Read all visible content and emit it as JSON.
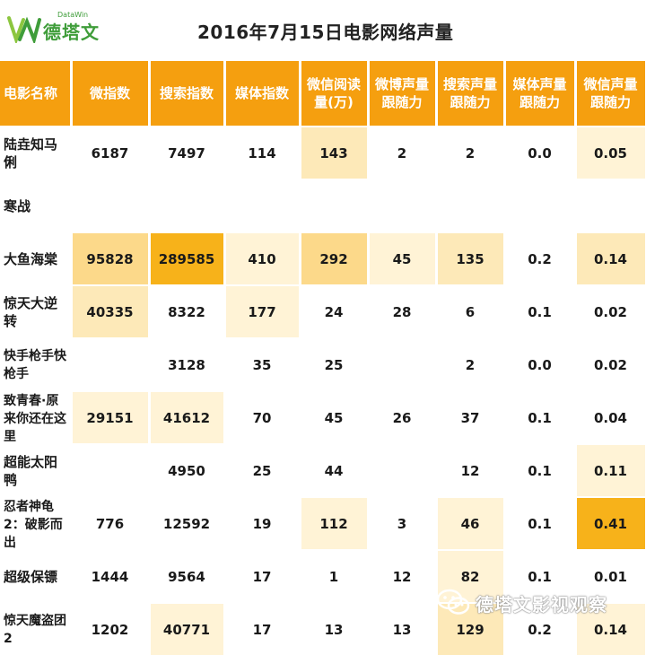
{
  "header": {
    "logo_text": "德塔文",
    "logo_sub": "DataWin",
    "title": "2016年7月15日电影网络声量"
  },
  "colors": {
    "header_bg": "#f59f0f",
    "heat_1": "#fff3d6",
    "heat_2": "#fde9b8",
    "heat_3": "#fcd98a",
    "heat_4": "#fbc64d",
    "heat_5": "#f7b21a",
    "logo_green": "#3f9d3a"
  },
  "table": {
    "columns": [
      "电影名称",
      "微指数",
      "搜索指数",
      "媒体指数",
      "微信阅读量(万)",
      "微博声量跟随力",
      "搜索声量跟随力",
      "媒体声量跟随力",
      "微信声量跟随力"
    ],
    "rows": [
      {
        "name": "陆垚知马俐",
        "cells": [
          "6187",
          "7497",
          "114",
          "143",
          "2",
          "2",
          "0.0",
          "0.05"
        ],
        "heat": [
          0,
          0,
          0,
          2,
          0,
          0,
          0,
          1
        ]
      },
      {
        "name": "寒战",
        "cells": [
          "",
          "",
          "",
          "",
          "",
          "",
          "",
          ""
        ],
        "heat": [
          0,
          0,
          0,
          0,
          0,
          0,
          0,
          0
        ]
      },
      {
        "name": "大鱼海棠",
        "cells": [
          "95828",
          "289585",
          "410",
          "292",
          "45",
          "135",
          "0.2",
          "0.14"
        ],
        "heat": [
          3,
          5,
          1,
          3,
          1,
          2,
          0,
          2
        ]
      },
      {
        "name": "惊天大逆转",
        "cells": [
          "40335",
          "8322",
          "177",
          "24",
          "28",
          "6",
          "0.1",
          "0.02"
        ],
        "heat": [
          2,
          0,
          1,
          0,
          0,
          0,
          0,
          0
        ]
      },
      {
        "name": "快手枪手快枪手",
        "cells": [
          "",
          "3128",
          "35",
          "25",
          "",
          "2",
          "0.0",
          "0.02"
        ],
        "heat": [
          0,
          0,
          0,
          0,
          0,
          0,
          0,
          0
        ]
      },
      {
        "name": "致青春·原来你还在这里",
        "cells": [
          "29151",
          "41612",
          "70",
          "45",
          "26",
          "37",
          "0.1",
          "0.04"
        ],
        "heat": [
          1,
          1,
          0,
          0,
          0,
          0,
          0,
          0
        ]
      },
      {
        "name": "超能太阳鸭",
        "cells": [
          "",
          "4950",
          "25",
          "44",
          "",
          "12",
          "0.1",
          "0.11"
        ],
        "heat": [
          0,
          0,
          0,
          0,
          0,
          0,
          0,
          1
        ]
      },
      {
        "name": "忍者神龟2：破影而出",
        "cells": [
          "776",
          "12592",
          "19",
          "112",
          "3",
          "46",
          "0.1",
          "0.41"
        ],
        "heat": [
          0,
          0,
          0,
          1,
          0,
          1,
          0,
          5
        ]
      },
      {
        "name": "超级保镖",
        "cells": [
          "1444",
          "9564",
          "17",
          "1",
          "12",
          "82",
          "0.1",
          "0.01"
        ],
        "heat": [
          0,
          0,
          0,
          0,
          0,
          1,
          0,
          0
        ]
      },
      {
        "name": "惊天魔盗团2",
        "cells": [
          "1202",
          "40771",
          "17",
          "13",
          "13",
          "129",
          "0.2",
          "0.14"
        ],
        "heat": [
          0,
          1,
          0,
          0,
          0,
          2,
          0,
          1
        ]
      }
    ]
  },
  "watermark": {
    "text": "德塔文影视观察",
    "icon": "wechat-icon"
  }
}
